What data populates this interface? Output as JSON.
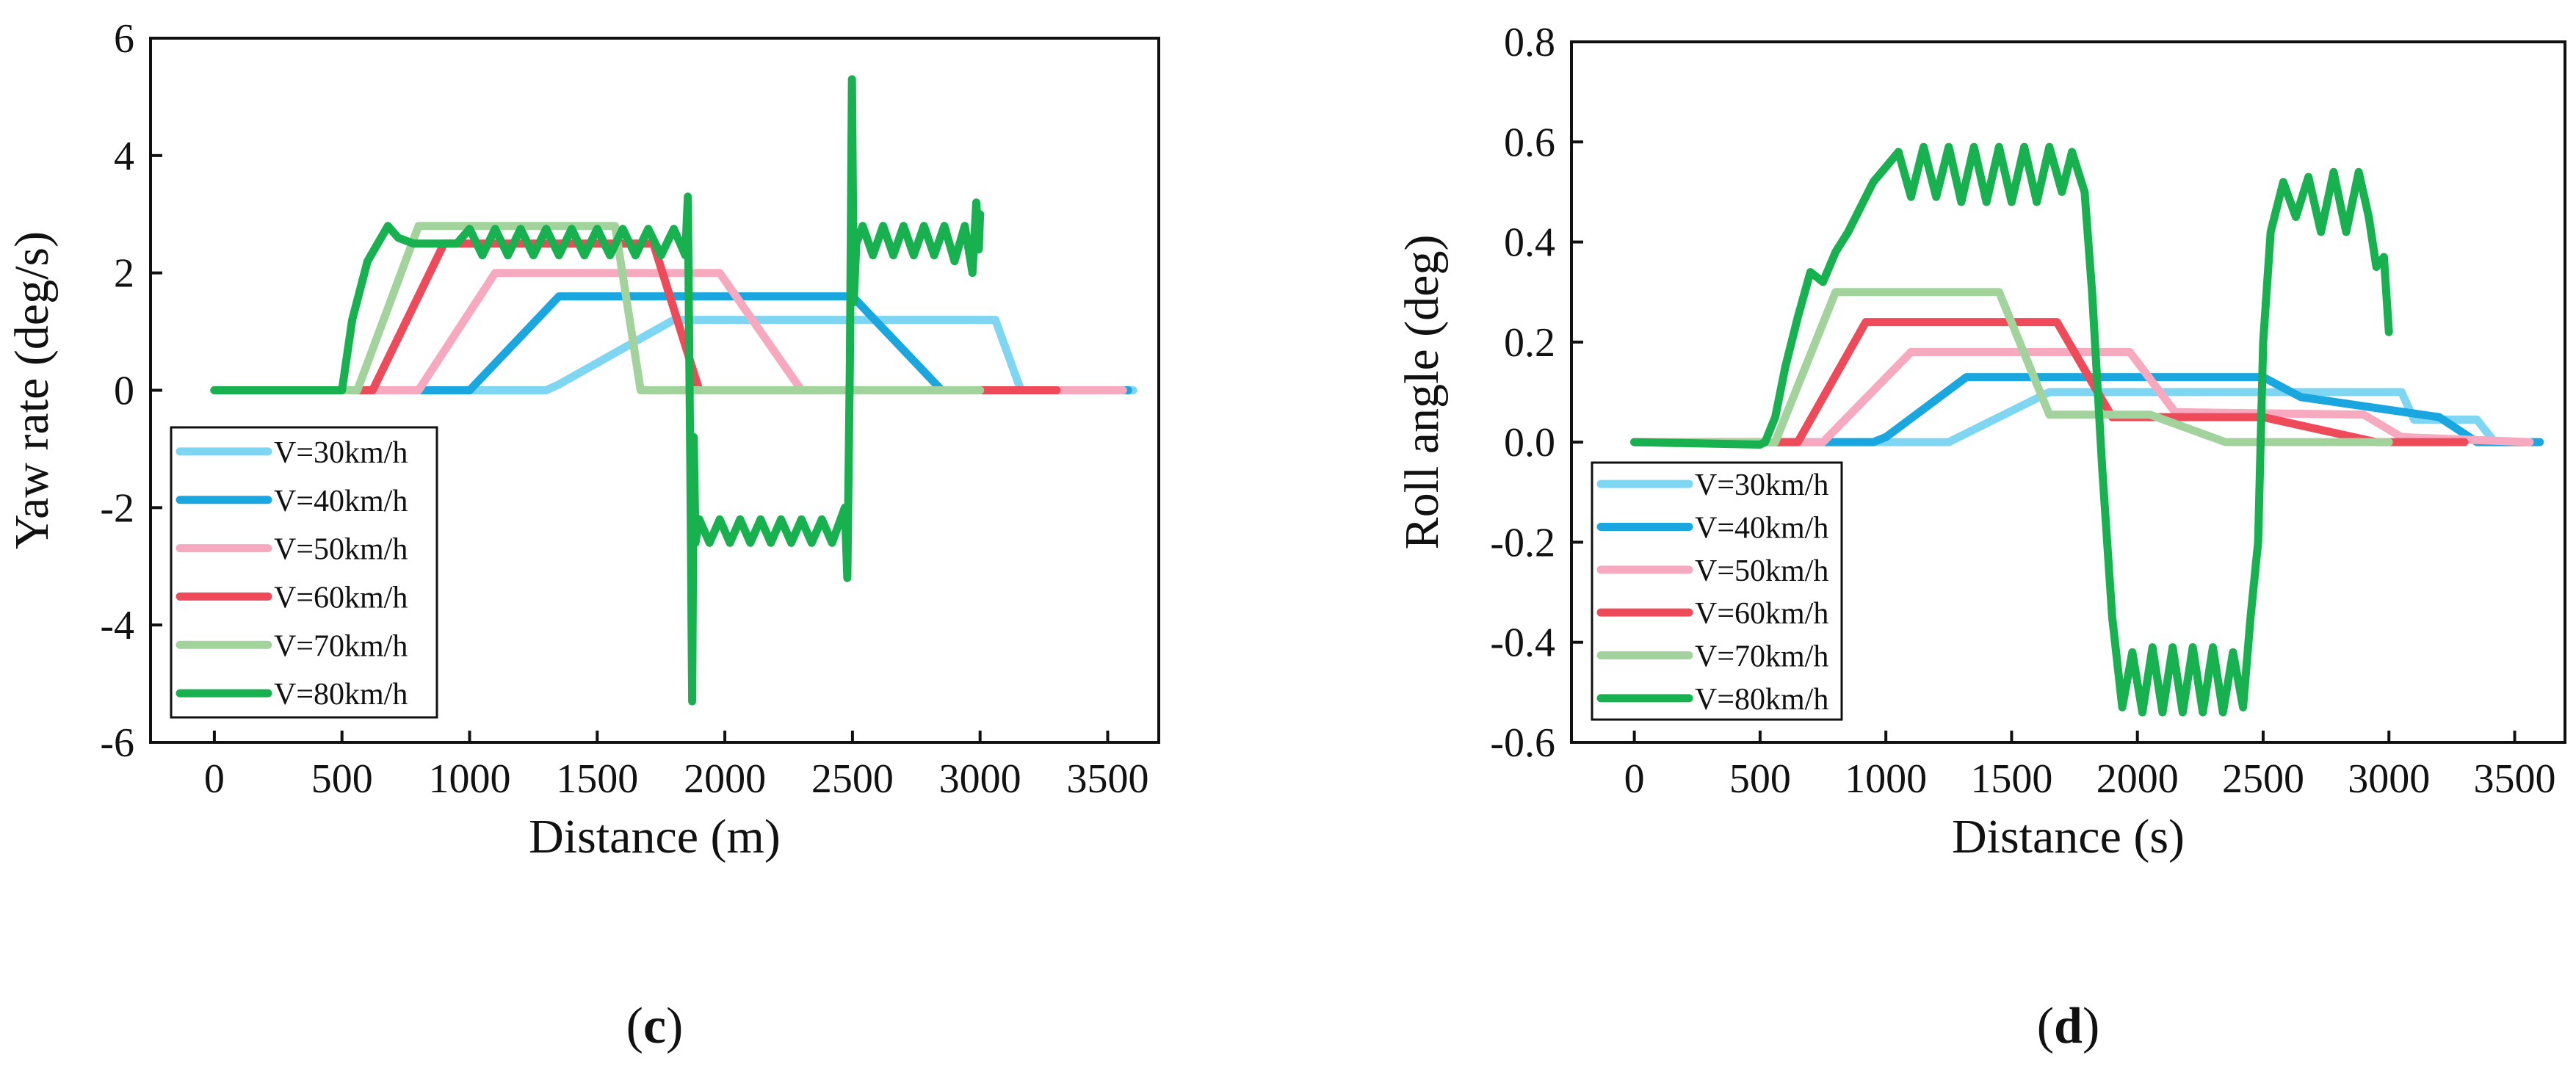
{
  "colors": {
    "v30": "#7fd6f2",
    "v40": "#1aa6df",
    "v50": "#f7a9c0",
    "v60": "#ef4a5a",
    "v70": "#a3d39c",
    "v80": "#17b150"
  },
  "chart_data": [
    {
      "type": "line",
      "panel_label": "c",
      "xlabel": "Distance  (m)",
      "ylabel": "Yaw rate (deg/s)",
      "xlim": [
        -250,
        3700
      ],
      "ylim": [
        -6,
        6
      ],
      "xticks": [
        0,
        500,
        1000,
        1500,
        2000,
        2500,
        3000,
        3500
      ],
      "yticks": [
        -6,
        -4,
        -2,
        0,
        2,
        4,
        6
      ],
      "grid": false,
      "legend_position": "bottom-left",
      "series": [
        {
          "name": "V=30km/h",
          "color_key": "v30",
          "x": [
            0,
            1300,
            1350,
            1800,
            3060,
            3160,
            3600
          ],
          "y": [
            0,
            0,
            0.1,
            1.2,
            1.2,
            0,
            0
          ]
        },
        {
          "name": "V=40km/h",
          "color_key": "v40",
          "x": [
            0,
            1000,
            1350,
            2500,
            2850,
            3580
          ],
          "y": [
            0,
            0,
            1.6,
            1.6,
            0,
            0
          ]
        },
        {
          "name": "V=50km/h",
          "color_key": "v50",
          "x": [
            0,
            800,
            1100,
            1980,
            2300,
            3560
          ],
          "y": [
            0,
            0,
            2.0,
            2.0,
            0,
            0
          ]
        },
        {
          "name": "V=60km/h",
          "color_key": "v60",
          "x": [
            0,
            620,
            900,
            1720,
            1900,
            3300
          ],
          "y": [
            0,
            0,
            2.5,
            2.5,
            0,
            0
          ]
        },
        {
          "name": "V=70km/h",
          "color_key": "v70",
          "x": [
            0,
            560,
            800,
            1570,
            1670,
            3000
          ],
          "y": [
            0,
            0,
            2.8,
            2.8,
            0,
            0
          ]
        },
        {
          "name": "V=80km/h",
          "color_key": "v80",
          "x": [
            0,
            500,
            540,
            600,
            680,
            720,
            780,
            850,
            950,
            1000,
            1050,
            1100,
            1150,
            1200,
            1250,
            1300,
            1350,
            1400,
            1450,
            1500,
            1550,
            1600,
            1650,
            1700,
            1750,
            1800,
            1845,
            1855,
            1865,
            1872,
            1878,
            1885,
            1900,
            1940,
            1980,
            2020,
            2060,
            2100,
            2140,
            2180,
            2220,
            2260,
            2300,
            2340,
            2380,
            2420,
            2470,
            2480,
            2490,
            2498,
            2505,
            2515,
            2540,
            2580,
            2620,
            2660,
            2700,
            2740,
            2780,
            2820,
            2860,
            2900,
            2940,
            2970,
            2985,
            2995,
            3000
          ],
          "y": [
            0,
            0,
            1.2,
            2.2,
            2.8,
            2.6,
            2.5,
            2.5,
            2.5,
            2.75,
            2.3,
            2.75,
            2.3,
            2.75,
            2.3,
            2.75,
            2.3,
            2.75,
            2.3,
            2.75,
            2.3,
            2.75,
            2.3,
            2.75,
            2.3,
            2.75,
            2.3,
            3.3,
            -1.5,
            -5.3,
            -0.8,
            -2.6,
            -2.2,
            -2.6,
            -2.2,
            -2.6,
            -2.2,
            -2.6,
            -2.2,
            -2.6,
            -2.2,
            -2.6,
            -2.2,
            -2.6,
            -2.2,
            -2.6,
            -2.0,
            -3.2,
            0.5,
            5.3,
            1.5,
            2.5,
            2.8,
            2.3,
            2.8,
            2.3,
            2.8,
            2.3,
            2.8,
            2.3,
            2.8,
            2.2,
            2.8,
            2.0,
            3.2,
            2.4,
            3.0
          ]
        }
      ]
    },
    {
      "type": "line",
      "panel_label": "d",
      "xlabel": "Distance (s)",
      "ylabel": "Roll angle (deg)",
      "xlim": [
        -250,
        3700
      ],
      "ylim": [
        -0.6,
        0.8
      ],
      "xticks": [
        0,
        500,
        1000,
        1500,
        2000,
        2500,
        3000,
        3500
      ],
      "yticks": [
        -0.6,
        -0.4,
        -0.2,
        0.0,
        0.2,
        0.4,
        0.6,
        0.8
      ],
      "ytick_labels": [
        "-0.6",
        "-0.4",
        "-0.2",
        "0.0",
        "0.2",
        "0.4",
        "0.6",
        "0.8"
      ],
      "grid": false,
      "legend_position": "bottom-left",
      "series": [
        {
          "name": "V=30km/h",
          "color_key": "v30",
          "x": [
            0,
            1250,
            1650,
            3050,
            3100,
            3350,
            3420,
            3600
          ],
          "y": [
            0,
            0,
            0.1,
            0.1,
            0.045,
            0.045,
            0,
            0
          ]
        },
        {
          "name": "V=40km/h",
          "color_key": "v40",
          "x": [
            0,
            950,
            1000,
            1320,
            2500,
            2650,
            3200,
            3350,
            3600
          ],
          "y": [
            0,
            0,
            0.01,
            0.13,
            0.13,
            0.09,
            0.05,
            0,
            0
          ]
        },
        {
          "name": "V=50km/h",
          "color_key": "v50",
          "x": [
            0,
            750,
            1100,
            1970,
            2150,
            2900,
            3050,
            3560
          ],
          "y": [
            0,
            0,
            0.18,
            0.18,
            0.06,
            0.055,
            0.01,
            0
          ]
        },
        {
          "name": "V=60km/h",
          "color_key": "v60",
          "x": [
            0,
            650,
            920,
            1680,
            1900,
            2050,
            2500,
            2950,
            3300
          ],
          "y": [
            0,
            0,
            0.24,
            0.24,
            0.05,
            0.05,
            0.05,
            0,
            0
          ]
        },
        {
          "name": "V=70km/h",
          "color_key": "v70",
          "x": [
            0,
            560,
            800,
            1450,
            1650,
            2050,
            2350,
            3000
          ],
          "y": [
            0,
            0,
            0.3,
            0.3,
            0.055,
            0.055,
            0,
            0
          ]
        },
        {
          "name": "V=80km/h",
          "color_key": "v80",
          "x": [
            0,
            500,
            520,
            560,
            600,
            650,
            700,
            750,
            800,
            850,
            900,
            950,
            1000,
            1050,
            1100,
            1150,
            1200,
            1250,
            1300,
            1350,
            1400,
            1450,
            1500,
            1550,
            1600,
            1650,
            1700,
            1740,
            1790,
            1820,
            1860,
            1900,
            1940,
            1980,
            2020,
            2060,
            2100,
            2140,
            2180,
            2220,
            2260,
            2300,
            2340,
            2380,
            2420,
            2450,
            2480,
            2500,
            2530,
            2580,
            2630,
            2680,
            2730,
            2780,
            2830,
            2880,
            2920,
            2950,
            2980,
            3000
          ],
          "y": [
            0,
            -0.005,
            0,
            0.05,
            0.15,
            0.25,
            0.34,
            0.32,
            0.38,
            0.42,
            0.47,
            0.52,
            0.55,
            0.58,
            0.49,
            0.59,
            0.49,
            0.59,
            0.48,
            0.59,
            0.48,
            0.59,
            0.48,
            0.59,
            0.48,
            0.59,
            0.5,
            0.58,
            0.5,
            0.3,
            -0.05,
            -0.35,
            -0.53,
            -0.42,
            -0.54,
            -0.41,
            -0.54,
            -0.41,
            -0.54,
            -0.41,
            -0.54,
            -0.41,
            -0.54,
            -0.42,
            -0.53,
            -0.35,
            -0.2,
            0.2,
            0.42,
            0.52,
            0.45,
            0.53,
            0.42,
            0.54,
            0.42,
            0.54,
            0.45,
            0.35,
            0.37,
            0.22
          ]
        }
      ]
    }
  ]
}
